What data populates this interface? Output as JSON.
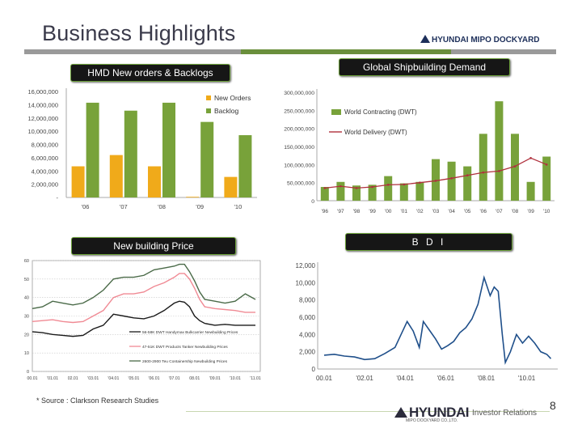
{
  "slide": {
    "title": "Business Highlights",
    "logo_top": "HYUNDAI MIPO DOCKYARD",
    "source": "* Source : Clarkson Research Studies",
    "logo_bottom": "HYUNDAI",
    "logo_bottom_sub": "MIPO DOCKYARD CO.,LTD.",
    "logo_ir": "Investor Relations",
    "page_number": "8"
  },
  "colors": {
    "accent_green": "#6a8f3c",
    "bar_orange": "#f0aa1a",
    "bar_green": "#78a23a",
    "line_red": "#b0303c",
    "line_navy": "#1f4f8a"
  },
  "chart_data": [
    {
      "type": "bar",
      "title": "HMD New orders & Backlogs",
      "categories": [
        "'06",
        "'07",
        "'08",
        "'09",
        "'10"
      ],
      "series": [
        {
          "name": "New Orders",
          "values": [
            4700000,
            6400000,
            4700000,
            100000,
            3100000
          ]
        },
        {
          "name": "Backlog",
          "values": [
            14300000,
            13100000,
            14300000,
            11400000,
            9400000
          ]
        }
      ],
      "yticks": [
        "-",
        "2,000,000",
        "4,000,000",
        "6,000,000",
        "8,000,000",
        "10,000,000",
        "12,000,000",
        "14,000,000",
        "16,000,000"
      ],
      "ylim": [
        0,
        16000000
      ],
      "legend": "top-right"
    },
    {
      "type": "bar",
      "title": "Global Shipbuilding Demand",
      "categories": [
        "'96",
        "'97",
        "'98",
        "'99",
        "'00",
        "'01",
        "'02",
        "'03",
        "'04",
        "'05",
        "'06",
        "'07",
        "'08",
        "'09",
        "'10"
      ],
      "series": [
        {
          "name": "World Contracting (DWT)",
          "values": [
            38000000,
            52000000,
            42000000,
            44000000,
            68000000,
            48000000,
            52000000,
            115000000,
            108000000,
            95000000,
            185000000,
            275000000,
            185000000,
            52000000,
            122000000
          ]
        },
        {
          "name": "World Delivery (DWT)",
          "values": [
            35000000,
            40000000,
            35000000,
            38000000,
            44000000,
            45000000,
            50000000,
            55000000,
            62000000,
            70000000,
            78000000,
            82000000,
            95000000,
            118000000,
            100000000
          ]
        }
      ],
      "yticks": [
        "0",
        "50,000,000",
        "100,000,000",
        "150,000,000",
        "200,000,000",
        "250,000,000",
        "300,000,000"
      ],
      "ylim": [
        0,
        300000000
      ],
      "legend": "top-left"
    },
    {
      "type": "line",
      "title": "New building Price",
      "x_ticks": [
        "00.01",
        "'01.01",
        "02.01",
        "'03.01",
        "'04.01",
        "'05.01",
        "'06.01",
        "'07.01",
        "08.01",
        "'09.01",
        "'10.01",
        "'11.01"
      ],
      "yticks": [
        "0",
        "10",
        "20",
        "30",
        "40",
        "50",
        "60"
      ],
      "ylim": [
        0,
        60
      ],
      "series": [
        {
          "name": "56-58K DWT Handymax Bulkcarrier Newbuilding Prices",
          "color": "#1a1a1a",
          "x": [
            0,
            0.5,
            1,
            1.5,
            2,
            2.5,
            3,
            3.5,
            4,
            4.5,
            5,
            5.5,
            6,
            6.5,
            7,
            7.25,
            7.5,
            7.75,
            8,
            8.25,
            8.5,
            9,
            9.5,
            10,
            10.5,
            11
          ],
          "values": [
            21.5,
            21,
            20,
            19.5,
            19,
            19.5,
            23,
            25,
            31,
            30,
            29,
            28.5,
            30,
            33,
            37,
            38,
            37.5,
            35,
            30,
            27.5,
            26,
            25,
            25.5,
            25,
            25,
            25
          ]
        },
        {
          "name": "47-51K DWT Products Tanker Newbuilding Prices",
          "color": "#f08a94",
          "x": [
            0,
            0.5,
            1,
            1.5,
            2,
            2.5,
            3,
            3.5,
            4,
            4.5,
            5,
            5.5,
            6,
            6.5,
            7,
            7.25,
            7.5,
            7.75,
            8,
            8.25,
            8.5,
            9,
            9.5,
            10,
            10.5,
            11
          ],
          "values": [
            27,
            27.5,
            28,
            27,
            26.5,
            27,
            30,
            33,
            40,
            42,
            42,
            43,
            46,
            48,
            51,
            53,
            53,
            50,
            45,
            39,
            35,
            34,
            33.5,
            33,
            32,
            32
          ]
        },
        {
          "name": "2600-2900 Teu Containership Newbuilding Prices",
          "color": "#4a6a48",
          "x": [
            0,
            0.5,
            1,
            1.5,
            2,
            2.5,
            3,
            3.5,
            4,
            4.5,
            5,
            5.5,
            6,
            6.5,
            7,
            7.25,
            7.5,
            7.75,
            8,
            8.25,
            8.5,
            9,
            9.5,
            10,
            10.5,
            11
          ],
          "values": [
            34,
            35,
            38,
            37,
            36,
            37,
            40,
            44,
            50,
            51,
            51,
            52,
            55,
            56,
            57,
            58,
            58,
            54,
            49,
            43,
            39,
            38,
            37,
            38,
            42,
            39
          ]
        }
      ]
    },
    {
      "type": "line",
      "title": "B D I",
      "x_ticks": [
        "00.01",
        "'02.01",
        "'04.01",
        "'06.01",
        "'08.01",
        "'10.01"
      ],
      "yticks": [
        "0",
        "2,000",
        "4,000",
        "6,000",
        "8,000",
        "10,000",
        "12,000"
      ],
      "ylim": [
        0,
        12000
      ],
      "series": [
        {
          "name": "BDI",
          "color": "#1f4f8a",
          "x": [
            2000.0,
            2000.5,
            2001.0,
            2001.5,
            2002.0,
            2002.5,
            2003.0,
            2003.5,
            2003.8,
            2004.1,
            2004.4,
            2004.7,
            2004.9,
            2005.2,
            2005.5,
            2005.8,
            2006.1,
            2006.4,
            2006.7,
            2007.0,
            2007.3,
            2007.6,
            2007.9,
            2008.2,
            2008.4,
            2008.6,
            2008.8,
            2008.95,
            2009.2,
            2009.5,
            2009.8,
            2010.1,
            2010.4,
            2010.7,
            2011.0,
            2011.2
          ],
          "values": [
            1600,
            1700,
            1500,
            1400,
            1100,
            1200,
            1800,
            2500,
            4000,
            5500,
            4400,
            2500,
            5500,
            4500,
            3500,
            2300,
            2700,
            3200,
            4200,
            4800,
            5800,
            7500,
            10600,
            8500,
            9500,
            9000,
            4000,
            750,
            2000,
            4000,
            3000,
            3800,
            3000,
            2000,
            1700,
            1200
          ]
        }
      ]
    }
  ]
}
